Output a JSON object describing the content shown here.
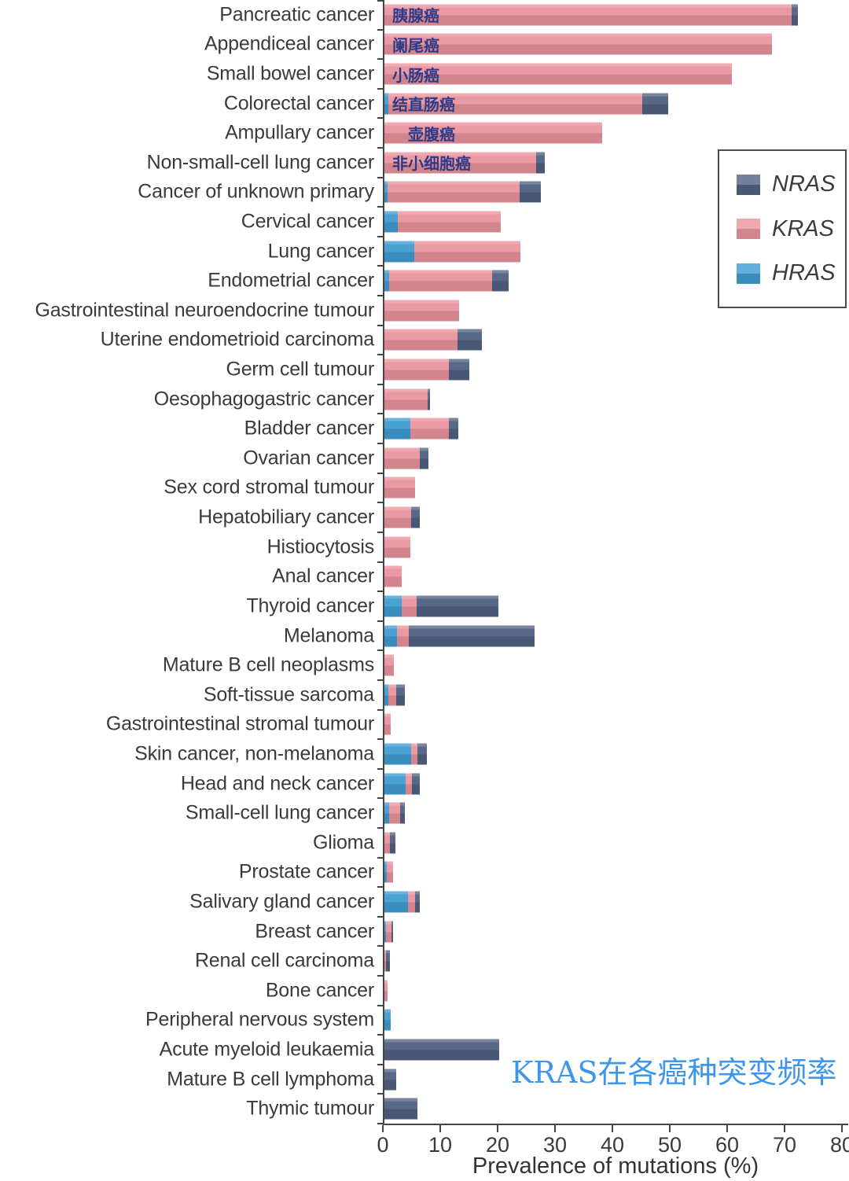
{
  "chart_data": {
    "type": "bar",
    "orientation": "horizontal",
    "stacked": true,
    "categories": [
      "Pancreatic cancer",
      "Appendiceal cancer",
      "Small bowel cancer",
      "Colorectal cancer",
      "Ampullary cancer",
      "Non-small-cell lung cancer",
      "Cancer of unknown primary",
      "Cervical cancer",
      "Lung cancer",
      "Endometrial cancer",
      "Gastrointestinal neuroendocrine tumour",
      "Uterine endometrioid carcinoma",
      "Germ cell tumour",
      "Oesophagogastric cancer",
      "Bladder cancer",
      "Ovarian cancer",
      "Sex cord stromal tumour",
      "Hepatobiliary cancer",
      "Histiocytosis",
      "Anal cancer",
      "Thyroid cancer",
      "Melanoma",
      "Mature B cell neoplasms",
      "Soft-tissue sarcoma",
      "Gastrointestinal stromal tumour",
      "Skin cancer, non-melanoma",
      "Head and neck cancer",
      "Small-cell lung cancer",
      "Glioma",
      "Prostate cancer",
      "Salivary gland cancer",
      "Breast cancer",
      "Renal cell carcinoma",
      "Bone cancer",
      "Peripheral nervous system",
      "Acute myeloid leukaemia",
      "Mature B cell lymphoma",
      "Thymic tumour"
    ],
    "series": [
      {
        "name": "NRAS",
        "color": "#4f6181",
        "values": [
          1,
          0,
          0,
          4.6,
          0,
          1.5,
          3.7,
          0,
          0,
          2.9,
          0,
          4.3,
          3.6,
          0.4,
          1.7,
          1.6,
          0,
          1.5,
          0,
          0,
          14.2,
          21.9,
          0,
          1.5,
          0,
          1.6,
          1.3,
          0.9,
          1.0,
          0,
          0.9,
          0.2,
          0.6,
          0,
          0,
          20,
          2,
          5.7
        ]
      },
      {
        "name": "KRAS",
        "color": "#ea949d",
        "values": [
          71,
          67.5,
          60.5,
          44.2,
          38,
          26.5,
          23,
          18,
          18.5,
          18,
          13,
          12.7,
          11.2,
          7.5,
          6.7,
          6.1,
          5.3,
          4.7,
          4.5,
          3,
          2.6,
          2.1,
          1.6,
          1.4,
          1.1,
          1.2,
          1.1,
          1.9,
          0.9,
          1.1,
          1.2,
          1.0,
          0.3,
          0.6,
          0,
          0,
          0,
          0
        ]
      },
      {
        "name": "HRAS",
        "color": "#3f9cd2",
        "values": [
          0,
          0,
          0,
          0.7,
          0,
          0,
          0.5,
          2.3,
          5.2,
          0.8,
          0,
          0,
          0,
          0,
          4.5,
          0,
          0,
          0,
          0,
          0,
          3.0,
          2.2,
          0,
          0.7,
          0,
          4.6,
          3.7,
          0.8,
          0,
          0.4,
          4.1,
          0.3,
          0,
          0,
          1.1,
          0,
          0,
          0
        ]
      }
    ],
    "stack_order": [
      "HRAS",
      "KRAS",
      "NRAS"
    ],
    "xlabel": "Prevalence of mutations (%)",
    "xlim": [
      0,
      80
    ],
    "x_ticks": [
      0,
      10,
      20,
      30,
      40,
      50,
      60,
      70,
      80
    ],
    "grid": false,
    "legend_position": "upper right",
    "bar_annotations": [
      {
        "row": 0,
        "text": "胰腺癌"
      },
      {
        "row": 1,
        "text": "阑尾癌"
      },
      {
        "row": 2,
        "text": "小肠癌"
      },
      {
        "row": 3,
        "text": "结直肠癌"
      },
      {
        "row": 4,
        "text": "壶腹癌",
        "indent": true
      },
      {
        "row": 5,
        "text": "非小细胞癌"
      }
    ],
    "watermark": "KRAS在各癌种突变频率"
  },
  "legend": {
    "items": [
      {
        "label": "NRAS",
        "color": "#4f6181"
      },
      {
        "label": "KRAS",
        "color": "#ea949d"
      },
      {
        "label": "HRAS",
        "color": "#3f9cd2"
      }
    ]
  },
  "axis": {
    "xlabel": "Prevalence of mutations (%)"
  }
}
